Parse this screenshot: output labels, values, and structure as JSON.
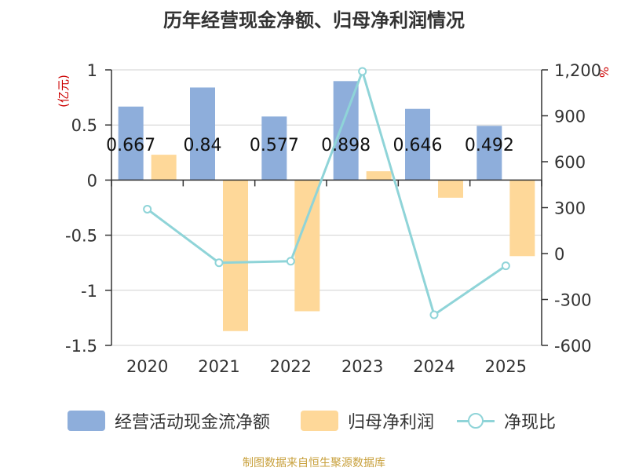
{
  "title": "历年经营现金净额、归母净利润情况",
  "source": "制图数据来自恒生聚源数据库",
  "colors": {
    "cash": "#8eaedb",
    "profit": "#fed899",
    "ratio": "#8fd4d8",
    "unit": "#cc0000"
  },
  "legend": [
    {
      "label": "经营活动现金流净额",
      "kind": "bar",
      "color": "#8eaedb"
    },
    {
      "label": "归母净利润",
      "kind": "bar",
      "color": "#fed899"
    },
    {
      "label": "净现比",
      "kind": "line",
      "color": "#8fd4d8"
    }
  ],
  "chart_data": {
    "type": "bar",
    "categories": [
      "2020",
      "2021",
      "2022",
      "2023",
      "2024",
      "2025"
    ],
    "series": [
      {
        "name": "经营活动现金流净额",
        "type": "bar",
        "axis": "left",
        "values": [
          0.667,
          0.84,
          0.577,
          0.898,
          0.646,
          0.492
        ],
        "labels": [
          "0.667",
          "0.84",
          "0.577",
          "0.898",
          "0.646",
          "0.492"
        ]
      },
      {
        "name": "归母净利润",
        "type": "bar",
        "axis": "left",
        "values": [
          0.23,
          -1.37,
          -1.19,
          0.08,
          -0.16,
          -0.69
        ]
      },
      {
        "name": "净现比",
        "type": "line",
        "axis": "right",
        "values": [
          290,
          -60,
          -50,
          1190,
          -400,
          -80
        ]
      }
    ],
    "left_axis": {
      "unit": "(亿元)",
      "ylim": [
        -1.5,
        1
      ],
      "ticks": [
        1,
        0.5,
        0,
        -0.5,
        -1,
        -1.5
      ],
      "tick_labels": [
        "1",
        "0.5",
        "0",
        "-0.5",
        "-1",
        "-1.5"
      ]
    },
    "right_axis": {
      "unit": "%",
      "ylim": [
        -600,
        1200
      ],
      "ticks": [
        1200,
        900,
        600,
        300,
        0,
        -300,
        -600
      ],
      "tick_labels": [
        "1,200",
        "900",
        "600",
        "300",
        "0",
        "-300",
        "-600"
      ]
    },
    "grid": true,
    "legend_position": "bottom"
  }
}
